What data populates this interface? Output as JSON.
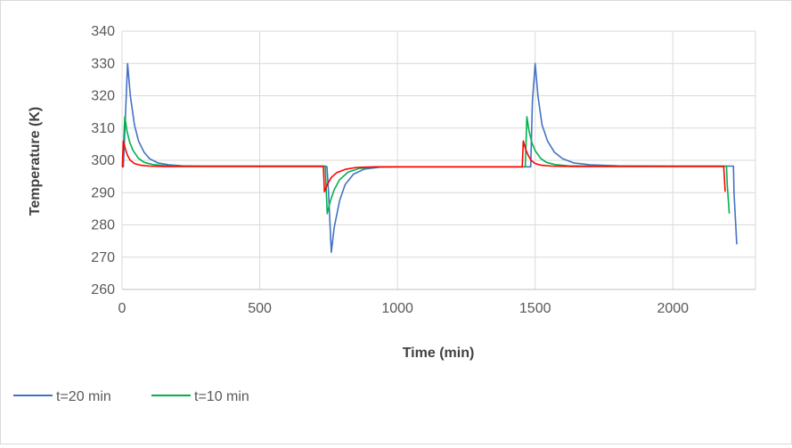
{
  "chart_data": {
    "type": "line",
    "title": "",
    "xlabel": "Time (min)",
    "ylabel": "Temperature (K)",
    "xlim": [
      0,
      2300
    ],
    "ylim": [
      260,
      340
    ],
    "x_ticks": [
      0,
      500,
      1000,
      1500,
      2000
    ],
    "y_ticks": [
      260,
      270,
      280,
      290,
      300,
      310,
      320,
      330,
      340
    ],
    "grid": true,
    "legend_position": "bottom-left",
    "series": [
      {
        "name": "t=20 min",
        "color": "#4472c4",
        "x": [
          0,
          5,
          20,
          30,
          45,
          60,
          80,
          100,
          130,
          170,
          220,
          300,
          500,
          740,
          744,
          750,
          760,
          770,
          790,
          810,
          840,
          880,
          940,
          1000,
          1300,
          1480,
          1484,
          1490,
          1500,
          1510,
          1525,
          1545,
          1570,
          1600,
          1640,
          1700,
          1800,
          2000,
          2220,
          2222,
          2232
        ],
        "values": [
          298,
          298,
          330,
          320,
          311,
          306,
          302.5,
          300.5,
          299.2,
          298.6,
          298.3,
          298.2,
          298.2,
          298.2,
          298,
          290,
          271.5,
          279,
          287.5,
          292.5,
          295.7,
          297.3,
          297.9,
          298,
          298,
          298,
          298,
          318,
          330,
          320,
          311,
          306,
          302.5,
          300.5,
          299.2,
          298.6,
          298.3,
          298.2,
          298.2,
          290,
          274
        ]
      },
      {
        "name": "t=10 min",
        "color": "#00b050",
        "x": [
          0,
          2,
          10,
          18,
          28,
          40,
          60,
          80,
          110,
          160,
          250,
          500,
          735,
          738,
          745,
          755,
          770,
          790,
          820,
          860,
          920,
          1000,
          1300,
          1462,
          1464,
          1470,
          1478,
          1488,
          1500,
          1520,
          1540,
          1570,
          1620,
          1710,
          1900,
          2195,
          2197,
          2205
        ],
        "values": [
          298,
          298,
          313.5,
          309,
          305.5,
          303,
          300.6,
          299.4,
          298.7,
          298.3,
          298.2,
          298.2,
          298.2,
          298,
          283.5,
          287,
          290.8,
          294,
          296.3,
          297.5,
          297.9,
          298,
          298,
          298,
          298,
          313.5,
          309,
          305.5,
          303,
          300.6,
          299.4,
          298.7,
          298.3,
          298.2,
          298.2,
          298.2,
          293,
          283.5
        ]
      },
      {
        "name": "",
        "color": "#ff0000",
        "x": [
          0,
          1,
          5,
          12,
          20,
          30,
          45,
          65,
          100,
          160,
          300,
          500,
          730,
          731,
          735,
          745,
          760,
          780,
          810,
          850,
          920,
          1000,
          1300,
          1452,
          1453,
          1457,
          1465,
          1475,
          1485,
          1500,
          1520,
          1560,
          1640,
          1800,
          2000,
          2185,
          2186,
          2190
        ],
        "values": [
          298,
          298,
          306,
          303.5,
          301.5,
          300,
          299,
          298.5,
          298.2,
          298.1,
          298.1,
          298.1,
          298.1,
          298,
          290.3,
          292.5,
          294.7,
          296.2,
          297.2,
          297.8,
          298,
          298,
          298,
          298,
          298,
          306,
          303.5,
          301.5,
          300,
          299,
          298.5,
          298.2,
          298.1,
          298.1,
          298.1,
          298.1,
          296,
          290.3
        ]
      }
    ]
  }
}
